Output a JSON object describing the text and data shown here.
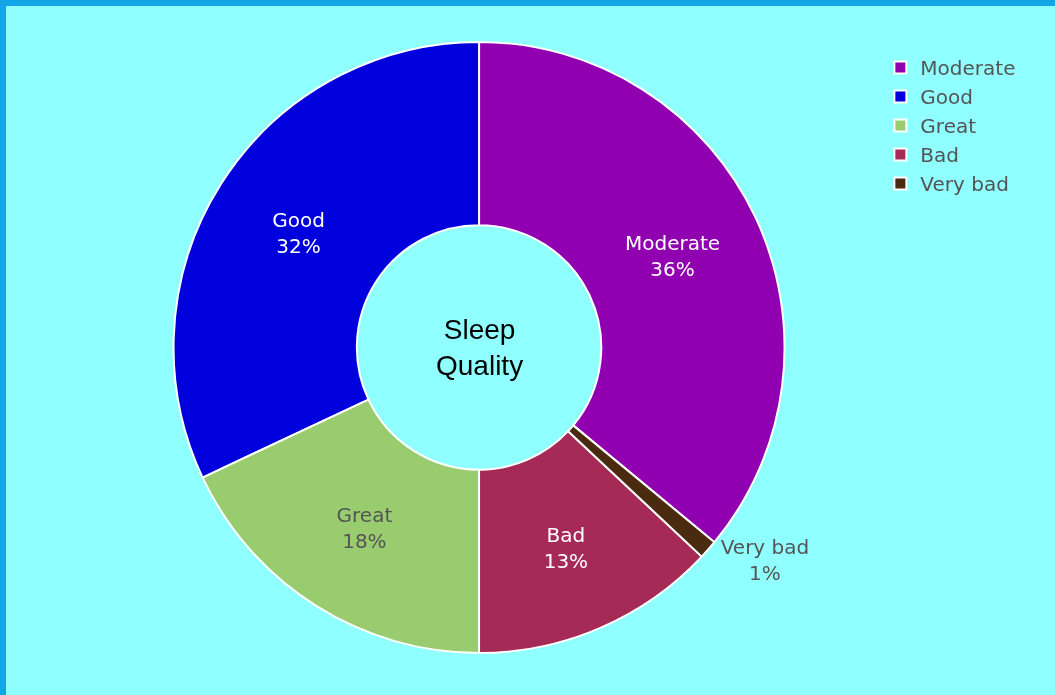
{
  "chart_data": {
    "type": "donut",
    "title": "Sleep Quality",
    "categories": [
      "Moderate",
      "Good",
      "Great",
      "Bad",
      "Very bad"
    ],
    "values": [
      36,
      32,
      18,
      13,
      1
    ],
    "value_labels": [
      "36%",
      "32%",
      "18%",
      "13%",
      "1%"
    ],
    "colors": [
      "#9100b0",
      "#0000dd",
      "#99cc6e",
      "#a52a55",
      "#4a2b10"
    ],
    "legend": "top right"
  }
}
